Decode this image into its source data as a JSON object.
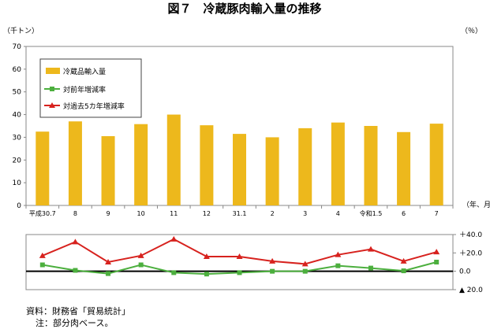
{
  "chart_data": {
    "type": "bar",
    "title": "図７　冷蔵豚肉輸入量の推移",
    "categories": [
      "平成30.7",
      "8",
      "9",
      "10",
      "11",
      "12",
      "31.1",
      "2",
      "3",
      "4",
      "令和1.5",
      "6",
      "7"
    ],
    "x_unit": "（年、月）",
    "top": {
      "y_unit": "（千トン）",
      "ylim": [
        0,
        70
      ],
      "yticks": [
        "0",
        "10",
        "20",
        "30",
        "40",
        "50",
        "60",
        "70"
      ],
      "series": [
        {
          "name": "冷蔵品輸入量",
          "type": "bar",
          "color": "#EDB81C",
          "values": [
            32.5,
            37,
            30.5,
            35.8,
            40,
            35.3,
            31.5,
            30,
            34,
            36.5,
            35,
            32.3,
            36
          ]
        }
      ]
    },
    "bottom": {
      "y_unit": "（％）",
      "ylim": [
        -20,
        40
      ],
      "yticks": [
        {
          "label": "＋40.0",
          "value": 40
        },
        {
          "label": "＋20.0",
          "value": 20
        },
        {
          "label": "0.0",
          "value": 0
        },
        {
          "label": "▲ 20.0",
          "value": -20
        }
      ],
      "series": [
        {
          "name": "対前年増減率",
          "type": "line",
          "color": "#4CAF3E",
          "marker": "square",
          "values": [
            7,
            1,
            -2.5,
            7,
            -1.5,
            -3,
            -1.5,
            0,
            0,
            6,
            3.5,
            0.5,
            10
          ]
        },
        {
          "name": "対過去5カ年増減率",
          "type": "line",
          "color": "#D7221E",
          "marker": "triangle",
          "values": [
            17,
            32,
            10,
            17,
            35,
            16,
            16,
            11,
            8,
            18,
            24,
            11,
            21
          ]
        }
      ]
    },
    "legend_position": "top-left",
    "grid": false
  },
  "footnotes": {
    "source": "資料：財務省「貿易統計」",
    "note": "注：部分肉ベース。"
  }
}
